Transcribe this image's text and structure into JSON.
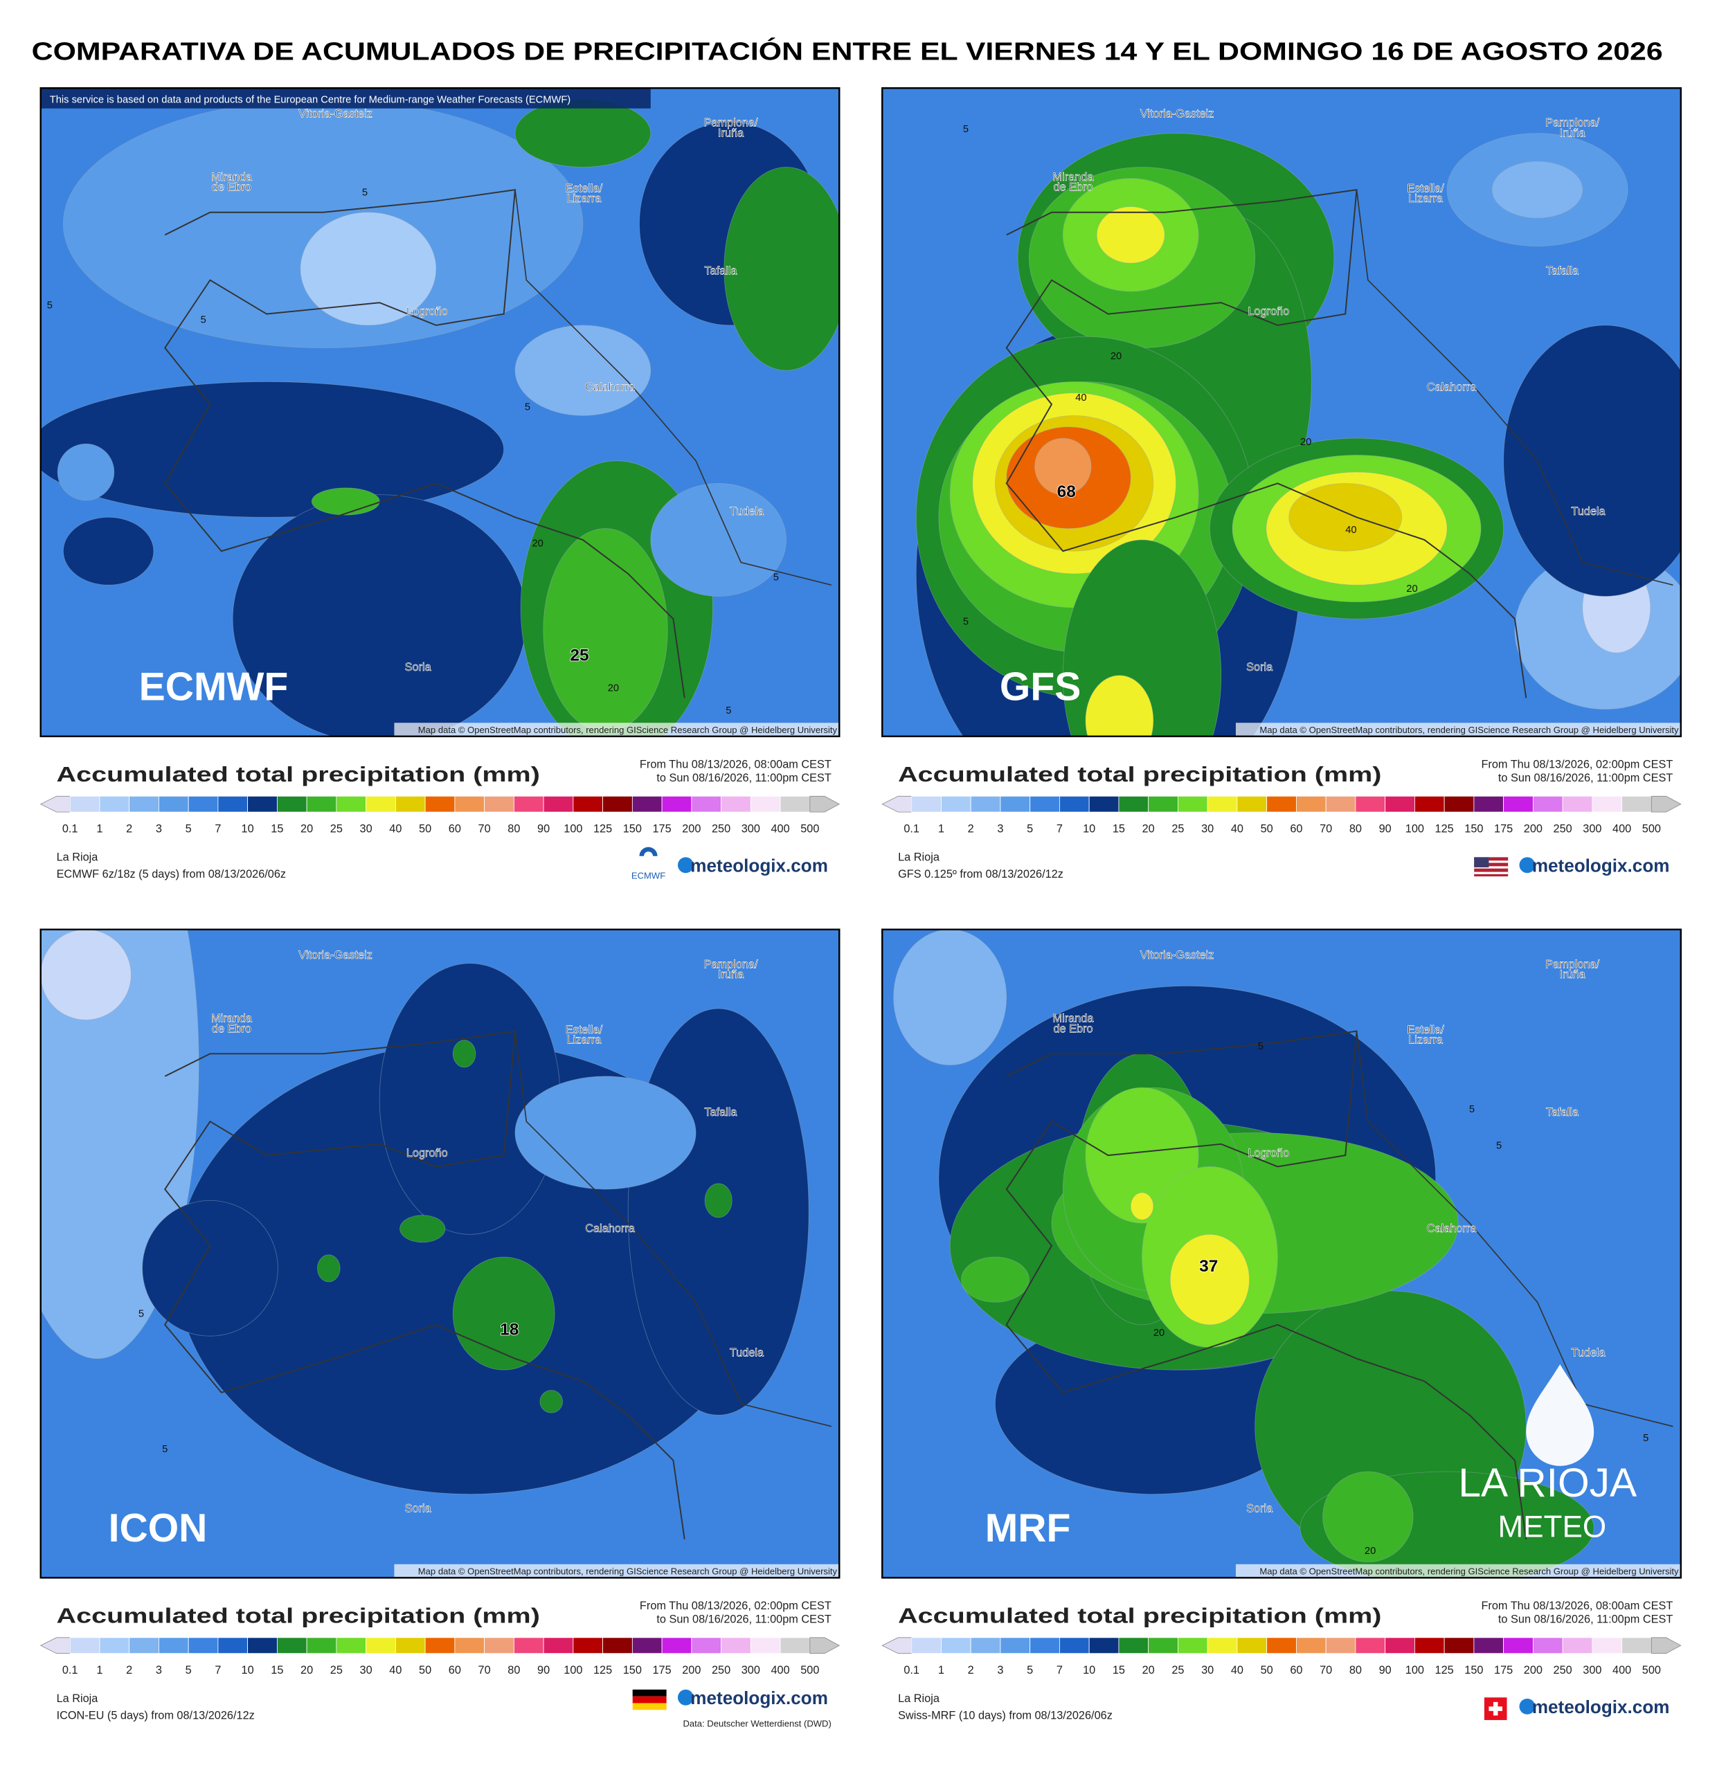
{
  "title": "COMPARATIVA DE ACUMULADOS DE PRECIPITACIÓN ENTRE EL VIERNES 14 Y EL DOMINGO 16 DE AGOSTO 2026",
  "cities": [
    {
      "lines": [
        "Vitoria-Gasteiz"
      ]
    },
    {
      "lines": [
        "Miranda",
        "de Ebro"
      ]
    },
    {
      "lines": [
        "Estella/",
        "Lizarra"
      ]
    },
    {
      "lines": [
        "Pamplona/",
        "Iruña"
      ]
    },
    {
      "lines": [
        "Tafalla"
      ]
    },
    {
      "lines": [
        "Logroño"
      ]
    },
    {
      "lines": [
        "Calahorra"
      ]
    },
    {
      "lines": [
        "Tudela"
      ]
    },
    {
      "lines": [
        "Soria"
      ]
    }
  ],
  "map_attribution": "Map data © OpenStreetMap contributors, rendering GIScience Research Group @ Heidelberg University",
  "legend": {
    "title": "Accumulated total precipitation (mm)",
    "ticks": [
      0.1,
      1,
      2,
      3,
      5,
      7,
      10,
      15,
      20,
      25,
      30,
      40,
      50,
      60,
      70,
      80,
      90,
      100,
      125,
      150,
      175,
      200,
      250,
      300,
      400,
      500
    ],
    "colors": [
      "#c8d8f8",
      "#a8ccf8",
      "#80b4f0",
      "#5a9ce8",
      "#3c84e0",
      "#1e64c8",
      "#0a3480",
      "#1e8c28",
      "#3cb428",
      "#6edc28",
      "#f0f028",
      "#e1cc00",
      "#ec6400",
      "#f09650",
      "#f0a078",
      "#f0467c",
      "#dc1e64",
      "#b40000",
      "#8c0000",
      "#6e1478",
      "#c81ee6",
      "#dc78f0",
      "#f0b4f0",
      "#f8e6f8",
      "#d2d2d2"
    ],
    "low_color": "#e4e0f4",
    "high_color": "#c8c8c8"
  },
  "region": "La Rioja",
  "brand": "meteologix.com",
  "panels": [
    {
      "label": "ECMWF",
      "notice": "This service is based on data and products of the European Centre for Medium-range Weather Forecasts (ECMWF)",
      "contours": [
        5,
        5,
        5,
        5,
        20,
        25,
        20,
        5,
        5
      ],
      "from": "From Thu 08/13/2026, 08:00am CEST",
      "to": "to Sun 08/16/2026, 11:00pm CEST",
      "model": "ECMWF 6z/18z (5 days) from 08/13/2026/06z",
      "logo_text": "ECMWF"
    },
    {
      "label": "GFS",
      "contours": [
        5,
        20,
        40,
        68,
        20,
        40,
        20,
        5
      ],
      "from": "From Thu 08/13/2026, 02:00pm CEST",
      "to": "to Sun 08/16/2026, 11:00pm CEST",
      "model": "GFS 0.125º from 08/13/2026/12z"
    },
    {
      "label": "ICON",
      "contours": [
        5,
        5,
        18
      ],
      "from": "From Thu 08/13/2026, 02:00pm CEST",
      "to": "to Sun 08/16/2026, 11:00pm CEST",
      "model": "ICON-EU (5 days) from 08/13/2026/12z",
      "source": "Data: Deutscher Wetterdienst (DWD)"
    },
    {
      "label": "MRF",
      "contours": [
        5,
        5,
        5,
        37,
        20,
        20,
        5
      ],
      "from": "From Thu 08/13/2026, 08:00am CEST",
      "to": "to Sun 08/16/2026, 11:00pm CEST",
      "model": "Swiss-MRF (10 days) from 08/13/2026/06z"
    }
  ],
  "watermark": {
    "lines": [
      "LA RIOJA",
      "METEO"
    ]
  }
}
